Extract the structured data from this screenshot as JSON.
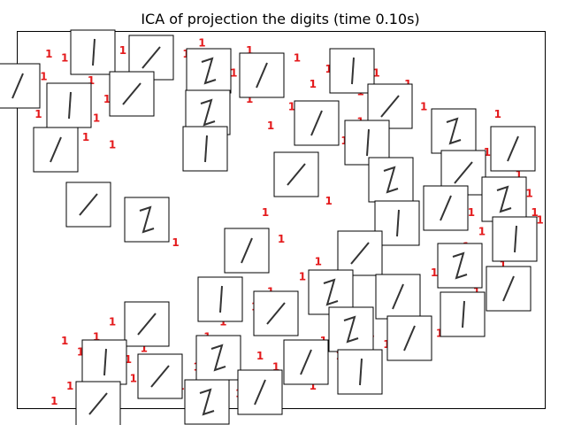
{
  "chart_data": {
    "type": "scatter",
    "title": "ICA of projection the digits (time 0.10s)",
    "xlabel": "",
    "ylabel": "",
    "xlim": [
      0,
      1
    ],
    "ylim": [
      0,
      1
    ],
    "axis_ticks": false,
    "marker": "digit-text-label",
    "label_color": "#e41a1c",
    "series": [
      {
        "label": "1",
        "points": [
          [
            0.06,
            0.94
          ],
          [
            0.09,
            0.93
          ],
          [
            0.12,
            0.91
          ],
          [
            0.05,
            0.88
          ],
          [
            0.14,
            0.87
          ],
          [
            0.08,
            0.85
          ],
          [
            0.03,
            0.84
          ],
          [
            0.17,
            0.82
          ],
          [
            0.1,
            0.8
          ],
          [
            0.04,
            0.78
          ],
          [
            0.15,
            0.77
          ],
          [
            0.09,
            0.74
          ],
          [
            0.13,
            0.72
          ],
          [
            0.18,
            0.7
          ],
          [
            0.07,
            0.69
          ],
          [
            0.11,
            0.66
          ],
          [
            0.2,
            0.95
          ],
          [
            0.23,
            0.92
          ],
          [
            0.26,
            0.96
          ],
          [
            0.29,
            0.9
          ],
          [
            0.32,
            0.94
          ],
          [
            0.35,
            0.97
          ],
          [
            0.38,
            0.92
          ],
          [
            0.41,
            0.89
          ],
          [
            0.44,
            0.95
          ],
          [
            0.47,
            0.91
          ],
          [
            0.5,
            0.88
          ],
          [
            0.53,
            0.93
          ],
          [
            0.56,
            0.86
          ],
          [
            0.59,
            0.9
          ],
          [
            0.62,
            0.87
          ],
          [
            0.65,
            0.84
          ],
          [
            0.68,
            0.89
          ],
          [
            0.71,
            0.82
          ],
          [
            0.74,
            0.86
          ],
          [
            0.77,
            0.8
          ],
          [
            0.8,
            0.77
          ],
          [
            0.83,
            0.74
          ],
          [
            0.86,
            0.71
          ],
          [
            0.89,
            0.68
          ],
          [
            0.92,
            0.65
          ],
          [
            0.95,
            0.62
          ],
          [
            0.97,
            0.57
          ],
          [
            0.98,
            0.52
          ],
          [
            0.96,
            0.48
          ],
          [
            0.94,
            0.44
          ],
          [
            0.97,
            0.4
          ],
          [
            0.92,
            0.38
          ],
          [
            0.9,
            0.34
          ],
          [
            0.87,
            0.31
          ],
          [
            0.85,
            0.27
          ],
          [
            0.82,
            0.24
          ],
          [
            0.8,
            0.2
          ],
          [
            0.77,
            0.23
          ],
          [
            0.75,
            0.19
          ],
          [
            0.72,
            0.21
          ],
          [
            0.7,
            0.17
          ],
          [
            0.67,
            0.2
          ],
          [
            0.64,
            0.16
          ],
          [
            0.61,
            0.14
          ],
          [
            0.58,
            0.18
          ],
          [
            0.55,
            0.12
          ],
          [
            0.52,
            0.15
          ],
          [
            0.49,
            0.11
          ],
          [
            0.46,
            0.14
          ],
          [
            0.43,
            0.09
          ],
          [
            0.4,
            0.12
          ],
          [
            0.37,
            0.08
          ],
          [
            0.34,
            0.11
          ],
          [
            0.31,
            0.06
          ],
          [
            0.28,
            0.09
          ],
          [
            0.25,
            0.05
          ],
          [
            0.22,
            0.08
          ],
          [
            0.19,
            0.04
          ],
          [
            0.16,
            0.07
          ],
          [
            0.13,
            0.03
          ],
          [
            0.1,
            0.06
          ],
          [
            0.07,
            0.02
          ],
          [
            0.21,
            0.13
          ],
          [
            0.24,
            0.16
          ],
          [
            0.27,
            0.12
          ],
          [
            0.36,
            0.19
          ],
          [
            0.39,
            0.23
          ],
          [
            0.45,
            0.27
          ],
          [
            0.48,
            0.31
          ],
          [
            0.54,
            0.35
          ],
          [
            0.57,
            0.39
          ],
          [
            0.6,
            0.33
          ],
          [
            0.63,
            0.37
          ],
          [
            0.66,
            0.42
          ],
          [
            0.69,
            0.46
          ],
          [
            0.72,
            0.5
          ],
          [
            0.75,
            0.54
          ],
          [
            0.78,
            0.58
          ],
          [
            0.81,
            0.62
          ],
          [
            0.84,
            0.66
          ],
          [
            0.87,
            0.6
          ],
          [
            0.9,
            0.56
          ],
          [
            0.93,
            0.52
          ],
          [
            0.88,
            0.47
          ],
          [
            0.85,
            0.43
          ],
          [
            0.91,
            0.41
          ],
          [
            0.94,
            0.36
          ],
          [
            0.62,
            0.71
          ],
          [
            0.65,
            0.76
          ],
          [
            0.68,
            0.67
          ],
          [
            0.71,
            0.63
          ],
          [
            0.52,
            0.8
          ],
          [
            0.48,
            0.75
          ],
          [
            0.55,
            0.72
          ],
          [
            0.58,
            0.78
          ],
          [
            0.44,
            0.82
          ],
          [
            0.3,
            0.44
          ],
          [
            0.5,
            0.45
          ],
          [
            0.47,
            0.52
          ],
          [
            0.59,
            0.55
          ],
          [
            0.69,
            0.29
          ],
          [
            0.73,
            0.33
          ],
          [
            0.79,
            0.36
          ],
          [
            0.83,
            0.4
          ],
          [
            0.86,
            0.52
          ],
          [
            0.99,
            0.5
          ],
          [
            0.95,
            0.72
          ],
          [
            0.91,
            0.78
          ],
          [
            0.33,
            0.02
          ],
          [
            0.42,
            0.04
          ],
          [
            0.56,
            0.06
          ],
          [
            0.64,
            0.07
          ],
          [
            0.12,
            0.15
          ],
          [
            0.15,
            0.19
          ],
          [
            0.09,
            0.18
          ],
          [
            0.18,
            0.23
          ]
        ]
      }
    ],
    "thumbnails": {
      "count": 48,
      "caption_text": "",
      "description": "handwritten digit image thumbnails"
    }
  }
}
